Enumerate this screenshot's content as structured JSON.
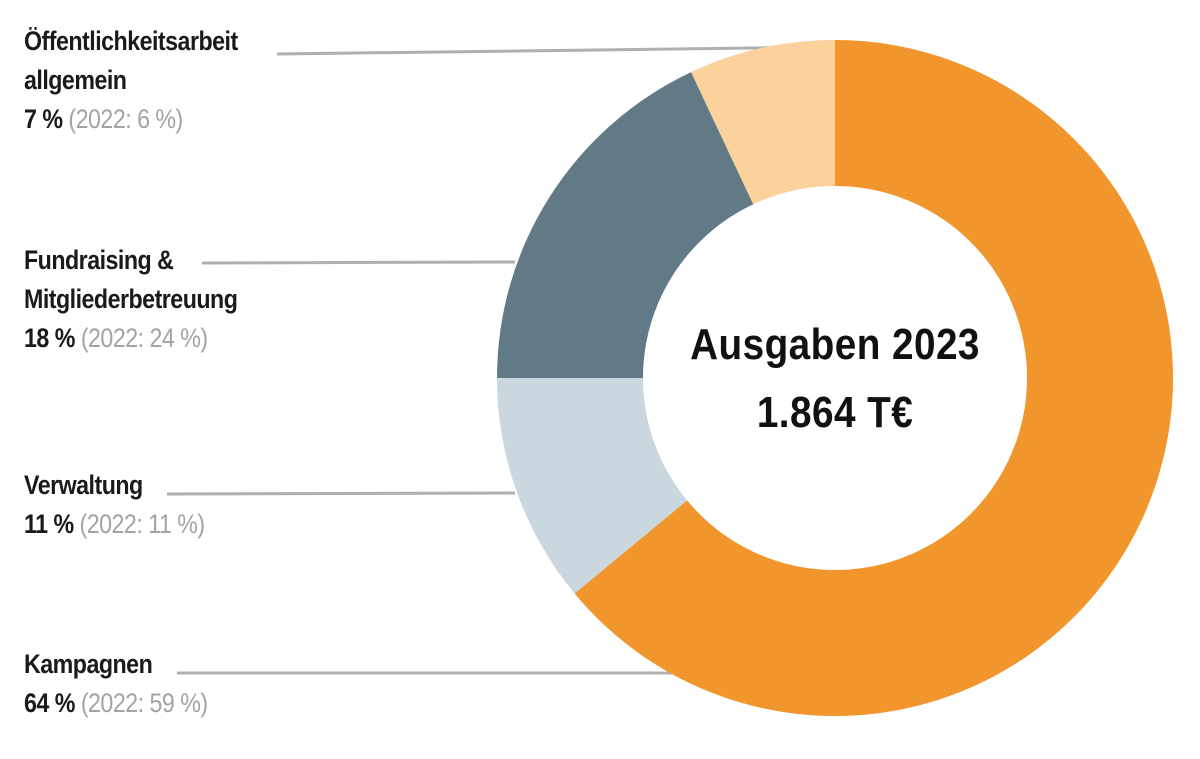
{
  "chart_data": {
    "type": "pie",
    "donut": true,
    "center_title": "Ausgaben 2023",
    "center_value": "1.864 T€",
    "segments": [
      {
        "label_lines": [
          "Kampagnen"
        ],
        "value": 64,
        "percent_text": "64 %",
        "prev_text": "(2022: 59 %)",
        "color": "#f0962d"
      },
      {
        "label_lines": [
          "Verwaltung"
        ],
        "value": 11,
        "percent_text": "11 %",
        "prev_text": "(2022: 11 %)",
        "color": "#cad7de"
      },
      {
        "label_lines": [
          "Fundraising &",
          "Mitgliederbetreuung"
        ],
        "value": 18,
        "percent_text": "18 %",
        "prev_text": "(2022: 24 %)",
        "color": "#627a86"
      },
      {
        "label_lines": [
          "Öffentlichkeitsarbeit",
          "allgemein"
        ],
        "value": 7,
        "percent_text": "7 %",
        "prev_text": "(2022: 6 %)",
        "color": "#fbd29c"
      }
    ],
    "legend_placement": "left",
    "leader_line_color": "#b0b0b0"
  }
}
